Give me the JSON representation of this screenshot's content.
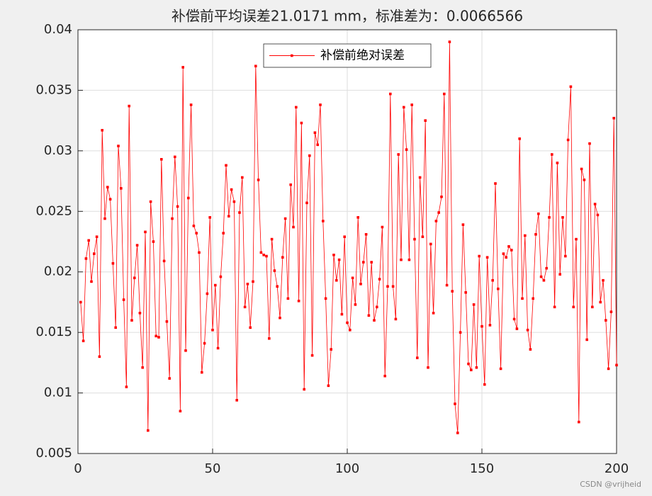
{
  "chart_data": {
    "type": "line",
    "title": "补偿前平均误差21.0171 mm，标准差为：0.0066566",
    "watermark": "CSDN @vrijheid",
    "x": [
      1,
      2,
      3,
      4,
      5,
      6,
      7,
      8,
      9,
      10,
      11,
      12,
      13,
      14,
      15,
      16,
      17,
      18,
      19,
      20,
      21,
      22,
      23,
      24,
      25,
      26,
      27,
      28,
      29,
      30,
      31,
      32,
      33,
      34,
      35,
      36,
      37,
      38,
      39,
      40,
      41,
      42,
      43,
      44,
      45,
      46,
      47,
      48,
      49,
      50,
      51,
      52,
      53,
      54,
      55,
      56,
      57,
      58,
      59,
      60,
      61,
      62,
      63,
      64,
      65,
      66,
      67,
      68,
      69,
      70,
      71,
      72,
      73,
      74,
      75,
      76,
      77,
      78,
      79,
      80,
      81,
      82,
      83,
      84,
      85,
      86,
      87,
      88,
      89,
      90,
      91,
      92,
      93,
      94,
      95,
      96,
      97,
      98,
      99,
      100,
      101,
      102,
      103,
      104,
      105,
      106,
      107,
      108,
      109,
      110,
      111,
      112,
      113,
      114,
      115,
      116,
      117,
      118,
      119,
      120,
      121,
      122,
      123,
      124,
      125,
      126,
      127,
      128,
      129,
      130,
      131,
      132,
      133,
      134,
      135,
      136,
      137,
      138,
      139,
      140,
      141,
      142,
      143,
      144,
      145,
      146,
      147,
      148,
      149,
      150,
      151,
      152,
      153,
      154,
      155,
      156,
      157,
      158,
      159,
      160,
      161,
      162,
      163,
      164,
      165,
      166,
      167,
      168,
      169,
      170,
      171,
      172,
      173,
      174,
      175,
      176,
      177,
      178,
      179,
      180,
      181,
      182,
      183,
      184,
      185,
      186,
      187,
      188,
      189,
      190,
      191,
      192,
      193,
      194,
      195,
      196,
      197,
      198,
      199,
      200
    ],
    "series": [
      {
        "name": "补偿前绝对误差",
        "color": "#ff0000",
        "values": [
          0.0175,
          0.0143,
          0.0211,
          0.0226,
          0.0192,
          0.0215,
          0.0229,
          0.013,
          0.0317,
          0.0244,
          0.027,
          0.026,
          0.0207,
          0.0154,
          0.0304,
          0.0269,
          0.0177,
          0.0105,
          0.0337,
          0.016,
          0.0195,
          0.0222,
          0.0166,
          0.0121,
          0.0233,
          0.0069,
          0.0258,
          0.0225,
          0.0147,
          0.0146,
          0.0293,
          0.0209,
          0.0159,
          0.0112,
          0.0244,
          0.0295,
          0.0254,
          0.0085,
          0.0369,
          0.0135,
          0.0261,
          0.0338,
          0.0238,
          0.0232,
          0.0216,
          0.0117,
          0.0141,
          0.0182,
          0.0245,
          0.0152,
          0.0189,
          0.0137,
          0.0196,
          0.0232,
          0.0288,
          0.0246,
          0.0268,
          0.0258,
          0.0094,
          0.0249,
          0.0278,
          0.0171,
          0.019,
          0.0154,
          0.0192,
          0.037,
          0.0276,
          0.0216,
          0.0214,
          0.0213,
          0.0145,
          0.0227,
          0.0201,
          0.0188,
          0.0162,
          0.0212,
          0.0244,
          0.0178,
          0.0272,
          0.0237,
          0.0336,
          0.0176,
          0.0323,
          0.0103,
          0.0257,
          0.0296,
          0.0131,
          0.0315,
          0.0305,
          0.0338,
          0.0242,
          0.0178,
          0.0106,
          0.0136,
          0.0214,
          0.0193,
          0.021,
          0.0165,
          0.0229,
          0.0158,
          0.0152,
          0.0195,
          0.0173,
          0.0245,
          0.019,
          0.0208,
          0.0231,
          0.0164,
          0.0208,
          0.016,
          0.0171,
          0.0194,
          0.0237,
          0.0114,
          0.0188,
          0.0347,
          0.0188,
          0.0161,
          0.0297,
          0.021,
          0.0336,
          0.0301,
          0.021,
          0.0338,
          0.0227,
          0.0129,
          0.0278,
          0.0229,
          0.0325,
          0.0121,
          0.0223,
          0.0166,
          0.0242,
          0.0249,
          0.0262,
          0.0347,
          0.0189,
          0.039,
          0.0184,
          0.0091,
          0.0067,
          0.015,
          0.0239,
          0.0183,
          0.0124,
          0.0119,
          0.0173,
          0.0121,
          0.0213,
          0.0155,
          0.0107,
          0.0212,
          0.0156,
          0.0193,
          0.0273,
          0.0186,
          0.012,
          0.0215,
          0.0212,
          0.0221,
          0.0218,
          0.0161,
          0.0153,
          0.031,
          0.0178,
          0.023,
          0.0152,
          0.0136,
          0.0178,
          0.0231,
          0.0248,
          0.0196,
          0.0193,
          0.0203,
          0.0245,
          0.0297,
          0.0171,
          0.029,
          0.0198,
          0.0245,
          0.0213,
          0.0309,
          0.0353,
          0.0171,
          0.0227,
          0.0076,
          0.0285,
          0.0276,
          0.0144,
          0.0306,
          0.0171,
          0.0256,
          0.0247,
          0.0175,
          0.0193,
          0.016,
          0.012,
          0.0167,
          0.0327,
          0.0123
        ]
      }
    ],
    "xlim": [
      0,
      200
    ],
    "xticks": [
      0,
      50,
      100,
      150,
      200
    ],
    "ylim": [
      0.005,
      0.04
    ],
    "yticks": [
      0.005,
      0.01,
      0.015,
      0.02,
      0.025,
      0.03,
      0.035,
      0.04
    ],
    "grid": true,
    "legend": "north"
  }
}
